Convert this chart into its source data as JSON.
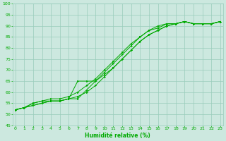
{
  "xlabel": "Humidité relative (%)",
  "background_color": "#cce8df",
  "grid_color": "#99ccbb",
  "line_color": "#00aa00",
  "marker_color": "#00aa00",
  "xlim": [
    -0.3,
    23.3
  ],
  "ylim": [
    45,
    100
  ],
  "yticks": [
    45,
    50,
    55,
    60,
    65,
    70,
    75,
    80,
    85,
    90,
    95,
    100
  ],
  "xticks": [
    0,
    1,
    2,
    3,
    4,
    5,
    6,
    7,
    8,
    9,
    10,
    11,
    12,
    13,
    14,
    15,
    16,
    17,
    18,
    19,
    20,
    21,
    22,
    23
  ],
  "series": [
    [
      52,
      53,
      54,
      55,
      56,
      56,
      57,
      58,
      60,
      63,
      67,
      71,
      75,
      79,
      83,
      86,
      88,
      90,
      91,
      92,
      91,
      91,
      91,
      92
    ],
    [
      52,
      53,
      55,
      56,
      57,
      57,
      58,
      60,
      63,
      66,
      70,
      74,
      78,
      82,
      85,
      88,
      89,
      91,
      91,
      92,
      91,
      91,
      91,
      92
    ],
    [
      52,
      53,
      54,
      55,
      56,
      56,
      57,
      65,
      65,
      65,
      68,
      71,
      75,
      79,
      83,
      86,
      88,
      90,
      91,
      92,
      91,
      91,
      91,
      92
    ],
    [
      52,
      53,
      55,
      56,
      56,
      56,
      57,
      57,
      61,
      65,
      69,
      73,
      77,
      81,
      85,
      88,
      90,
      91,
      91,
      92,
      91,
      91,
      91,
      92
    ]
  ]
}
